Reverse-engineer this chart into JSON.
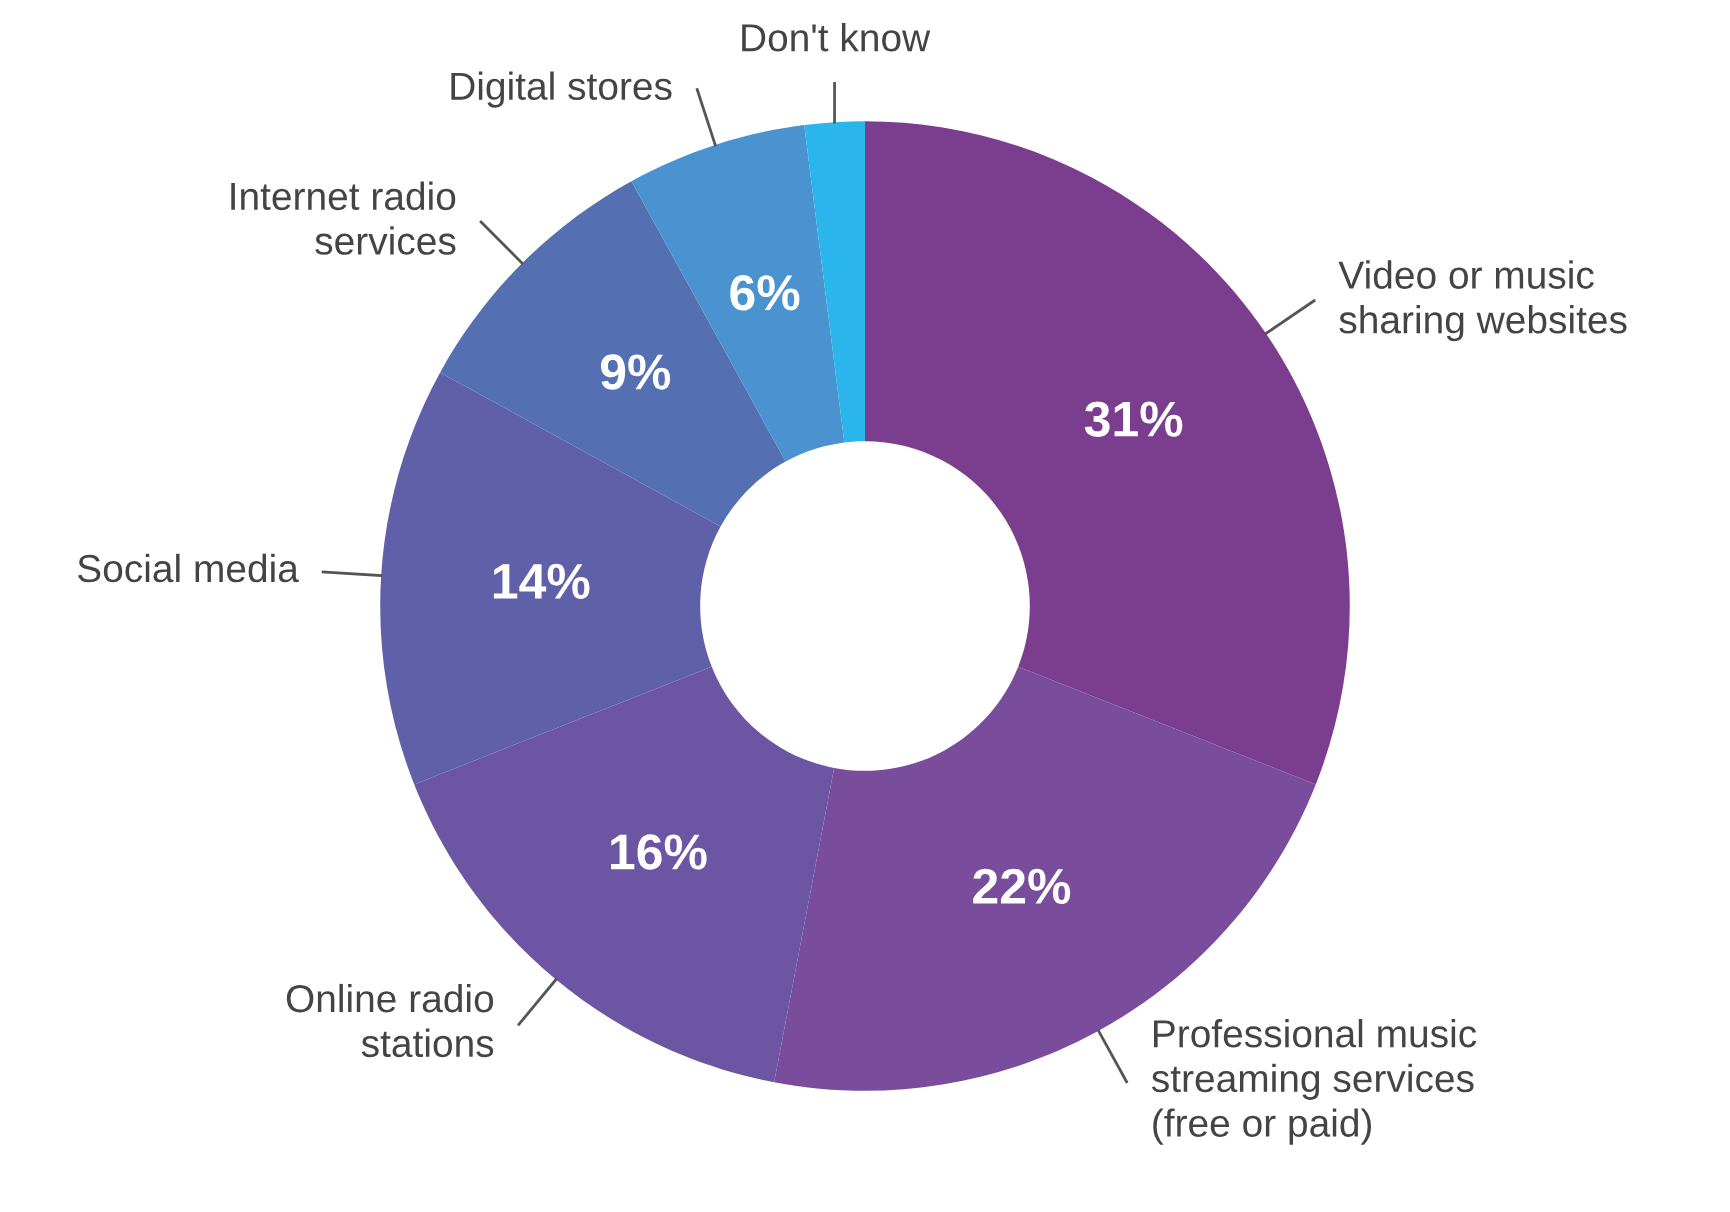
{
  "chart_data": {
    "type": "donut",
    "categories": [
      "Video or music\nsharing websites",
      "Professional music\nstreaming services\n(free or paid)",
      "Online radio\nstations",
      "Social media",
      "Internet radio\nservices",
      "Digital stores",
      "Don't know"
    ],
    "values": [
      31,
      22,
      16,
      14,
      9,
      6,
      2
    ],
    "colors": [
      "#7b3d8e",
      "#7a4c9c",
      "#6c55a3",
      "#6060a8",
      "#5470b2",
      "#4a92d0",
      "#2ab6ea"
    ],
    "value_labels": [
      "31%",
      "22%",
      "16%",
      "14%",
      "9%",
      "6%",
      null
    ]
  }
}
